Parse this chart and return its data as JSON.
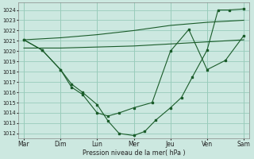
{
  "background_color": "#cce8e0",
  "grid_color": "#99ccbb",
  "line_color": "#1a5c2a",
  "xlabel": "Pression niveau de la mer( hPa )",
  "ylim": [
    1011.5,
    1024.7
  ],
  "yticks": [
    1012,
    1013,
    1014,
    1015,
    1016,
    1017,
    1018,
    1019,
    1020,
    1021,
    1022,
    1023,
    1024
  ],
  "xtick_labels": [
    "Mar",
    "Dim",
    "Lun",
    "Mer",
    "Jeu",
    "Ven",
    "Sam"
  ],
  "xtick_positions": [
    0,
    1,
    2,
    3,
    4,
    5,
    6
  ],
  "line_A_x": [
    0,
    1,
    2,
    3,
    4,
    5,
    6
  ],
  "line_A_y": [
    1021.1,
    1021.3,
    1021.6,
    1022.0,
    1022.5,
    1022.8,
    1023.0
  ],
  "line_B_x": [
    0,
    1,
    2,
    3,
    4,
    5,
    6
  ],
  "line_B_y": [
    1020.3,
    1020.3,
    1020.4,
    1020.5,
    1020.7,
    1020.9,
    1021.1
  ],
  "line_C_x": [
    0,
    0.5,
    1.0,
    1.3,
    1.6,
    2.0,
    2.3,
    2.6,
    3.0,
    3.3,
    3.6,
    4.0,
    4.3,
    4.6,
    5.0,
    5.3,
    5.6,
    6.0
  ],
  "line_C_y": [
    1021.1,
    1020.1,
    1018.2,
    1016.8,
    1016.0,
    1014.8,
    1013.2,
    1012.0,
    1011.8,
    1012.2,
    1013.3,
    1014.5,
    1015.5,
    1017.5,
    1020.1,
    1024.0,
    1024.0,
    1024.1
  ],
  "line_D_x": [
    0,
    0.5,
    1.0,
    1.3,
    1.6,
    2.0,
    2.3,
    2.6,
    3.0,
    3.5,
    4.0,
    4.5,
    5.0,
    5.5,
    6.0
  ],
  "line_D_y": [
    1021.1,
    1020.1,
    1018.2,
    1016.5,
    1015.8,
    1014.0,
    1013.7,
    1014.0,
    1014.5,
    1015.0,
    1020.0,
    1022.1,
    1018.2,
    1019.1,
    1021.5
  ]
}
